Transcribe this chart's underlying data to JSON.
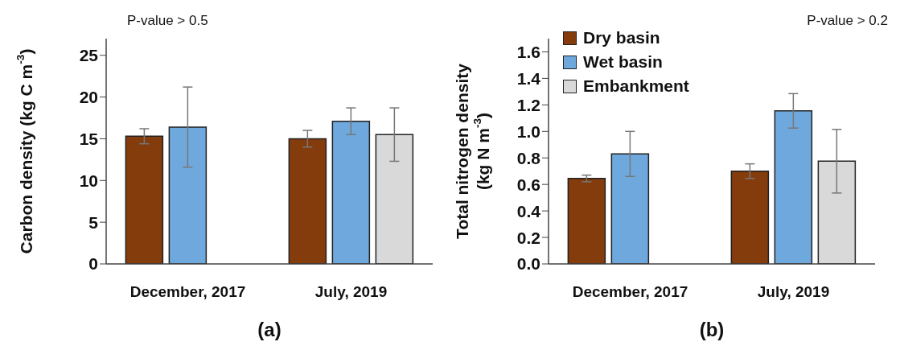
{
  "chart_data": [
    {
      "type": "bar",
      "xlabel": "(a)",
      "ylabel": "Carbon  density (kg C m$^{-3}$)",
      "categories": [
        "December, 2017",
        "July, 2019"
      ],
      "series": [
        {
          "color": "#843c0c",
          "values": [
            15.3,
            15.0
          ],
          "errors": [
            0.9,
            1.0
          ]
        },
        {
          "color": "#6fa8dc",
          "values": [
            16.4,
            17.1
          ],
          "errors": [
            4.8,
            1.6
          ]
        },
        {
          "color": "#d9d9d9",
          "values": [
            null,
            15.5
          ],
          "errors": [
            null,
            3.2
          ]
        }
      ],
      "ylim": [
        0,
        27
      ],
      "yticks": [
        0,
        5,
        10,
        15,
        20,
        25
      ],
      "grid": false,
      "legend": false,
      "annotations": [
        "P-value > 0.5"
      ]
    },
    {
      "type": "bar",
      "xlabel": "(b)",
      "ylabel": "Total nitrogen density (kg N m$^{-3}$)",
      "categories": [
        "December, 2017",
        "July, 2019"
      ],
      "series": [
        {
          "name": "Dry basin",
          "color": "#843c0c",
          "values": [
            0.645,
            0.7
          ],
          "errors": [
            0.025,
            0.055
          ]
        },
        {
          "name": "Wet basin",
          "color": "#6fa8dc",
          "values": [
            0.83,
            1.155
          ],
          "errors": [
            0.17,
            0.13
          ]
        },
        {
          "name": "Embankment",
          "color": "#d9d9d9",
          "values": [
            null,
            0.775
          ],
          "errors": [
            null,
            0.24
          ]
        }
      ],
      "ylim": [
        0,
        1.7
      ],
      "yticks": [
        {
          "value": 0,
          "label": "0.0"
        },
        0.2,
        0.4,
        0.6,
        0.8,
        {
          "value": 1,
          "label": "1.0"
        },
        1.2,
        1.4,
        1.6
      ],
      "grid": false,
      "legend": "top left",
      "annotations": [
        "P-value > 0.2"
      ]
    }
  ]
}
